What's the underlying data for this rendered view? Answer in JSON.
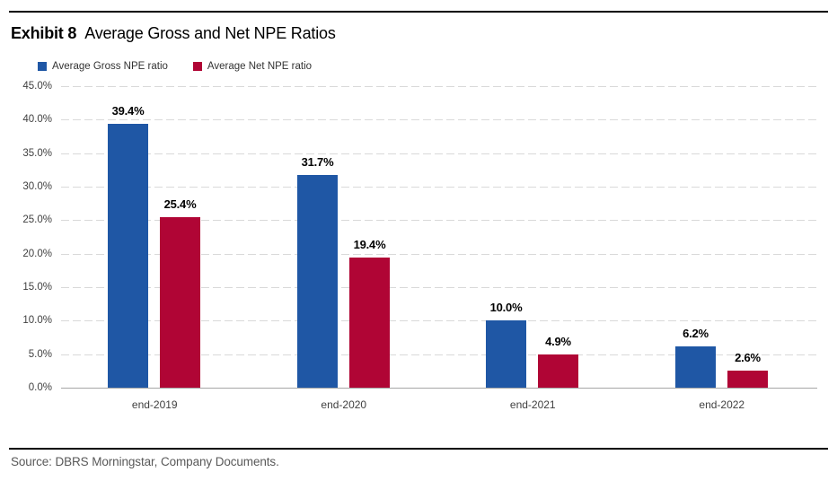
{
  "header": {
    "exhibit_label": "Exhibit 8",
    "title": "Average Gross and Net NPE Ratios"
  },
  "legend": {
    "items": [
      {
        "label": "Average Gross NPE ratio"
      },
      {
        "label": "Average Net NPE ratio"
      }
    ]
  },
  "chart_data": {
    "type": "bar",
    "title": "Average Gross and Net NPE Ratios",
    "categories": [
      "end-2019",
      "end-2020",
      "end-2021",
      "end-2022"
    ],
    "series": [
      {
        "name": "Average Gross NPE ratio",
        "color": "#1F57A5",
        "values": [
          39.4,
          31.7,
          10.0,
          6.2
        ],
        "labels": [
          "39.4%",
          "31.7%",
          "10.0%",
          "6.2%"
        ]
      },
      {
        "name": "Average Net NPE ratio",
        "color": "#B00535",
        "values": [
          25.4,
          19.4,
          4.9,
          2.6
        ],
        "labels": [
          "25.4%",
          "19.4%",
          "4.9%",
          "2.6%"
        ]
      }
    ],
    "ylim": [
      0,
      45
    ],
    "ytick_step": 5,
    "ytick_labels": [
      "45.0%",
      "40.0%",
      "35.0%",
      "30.0%",
      "25.0%",
      "20.0%",
      "15.0%",
      "10.0%",
      "5.0%",
      "0.0%"
    ],
    "grid": "horizontal-dashed",
    "legend_position": "top-left"
  },
  "source": {
    "text": "Source: DBRS Morningstar, Company Documents."
  }
}
